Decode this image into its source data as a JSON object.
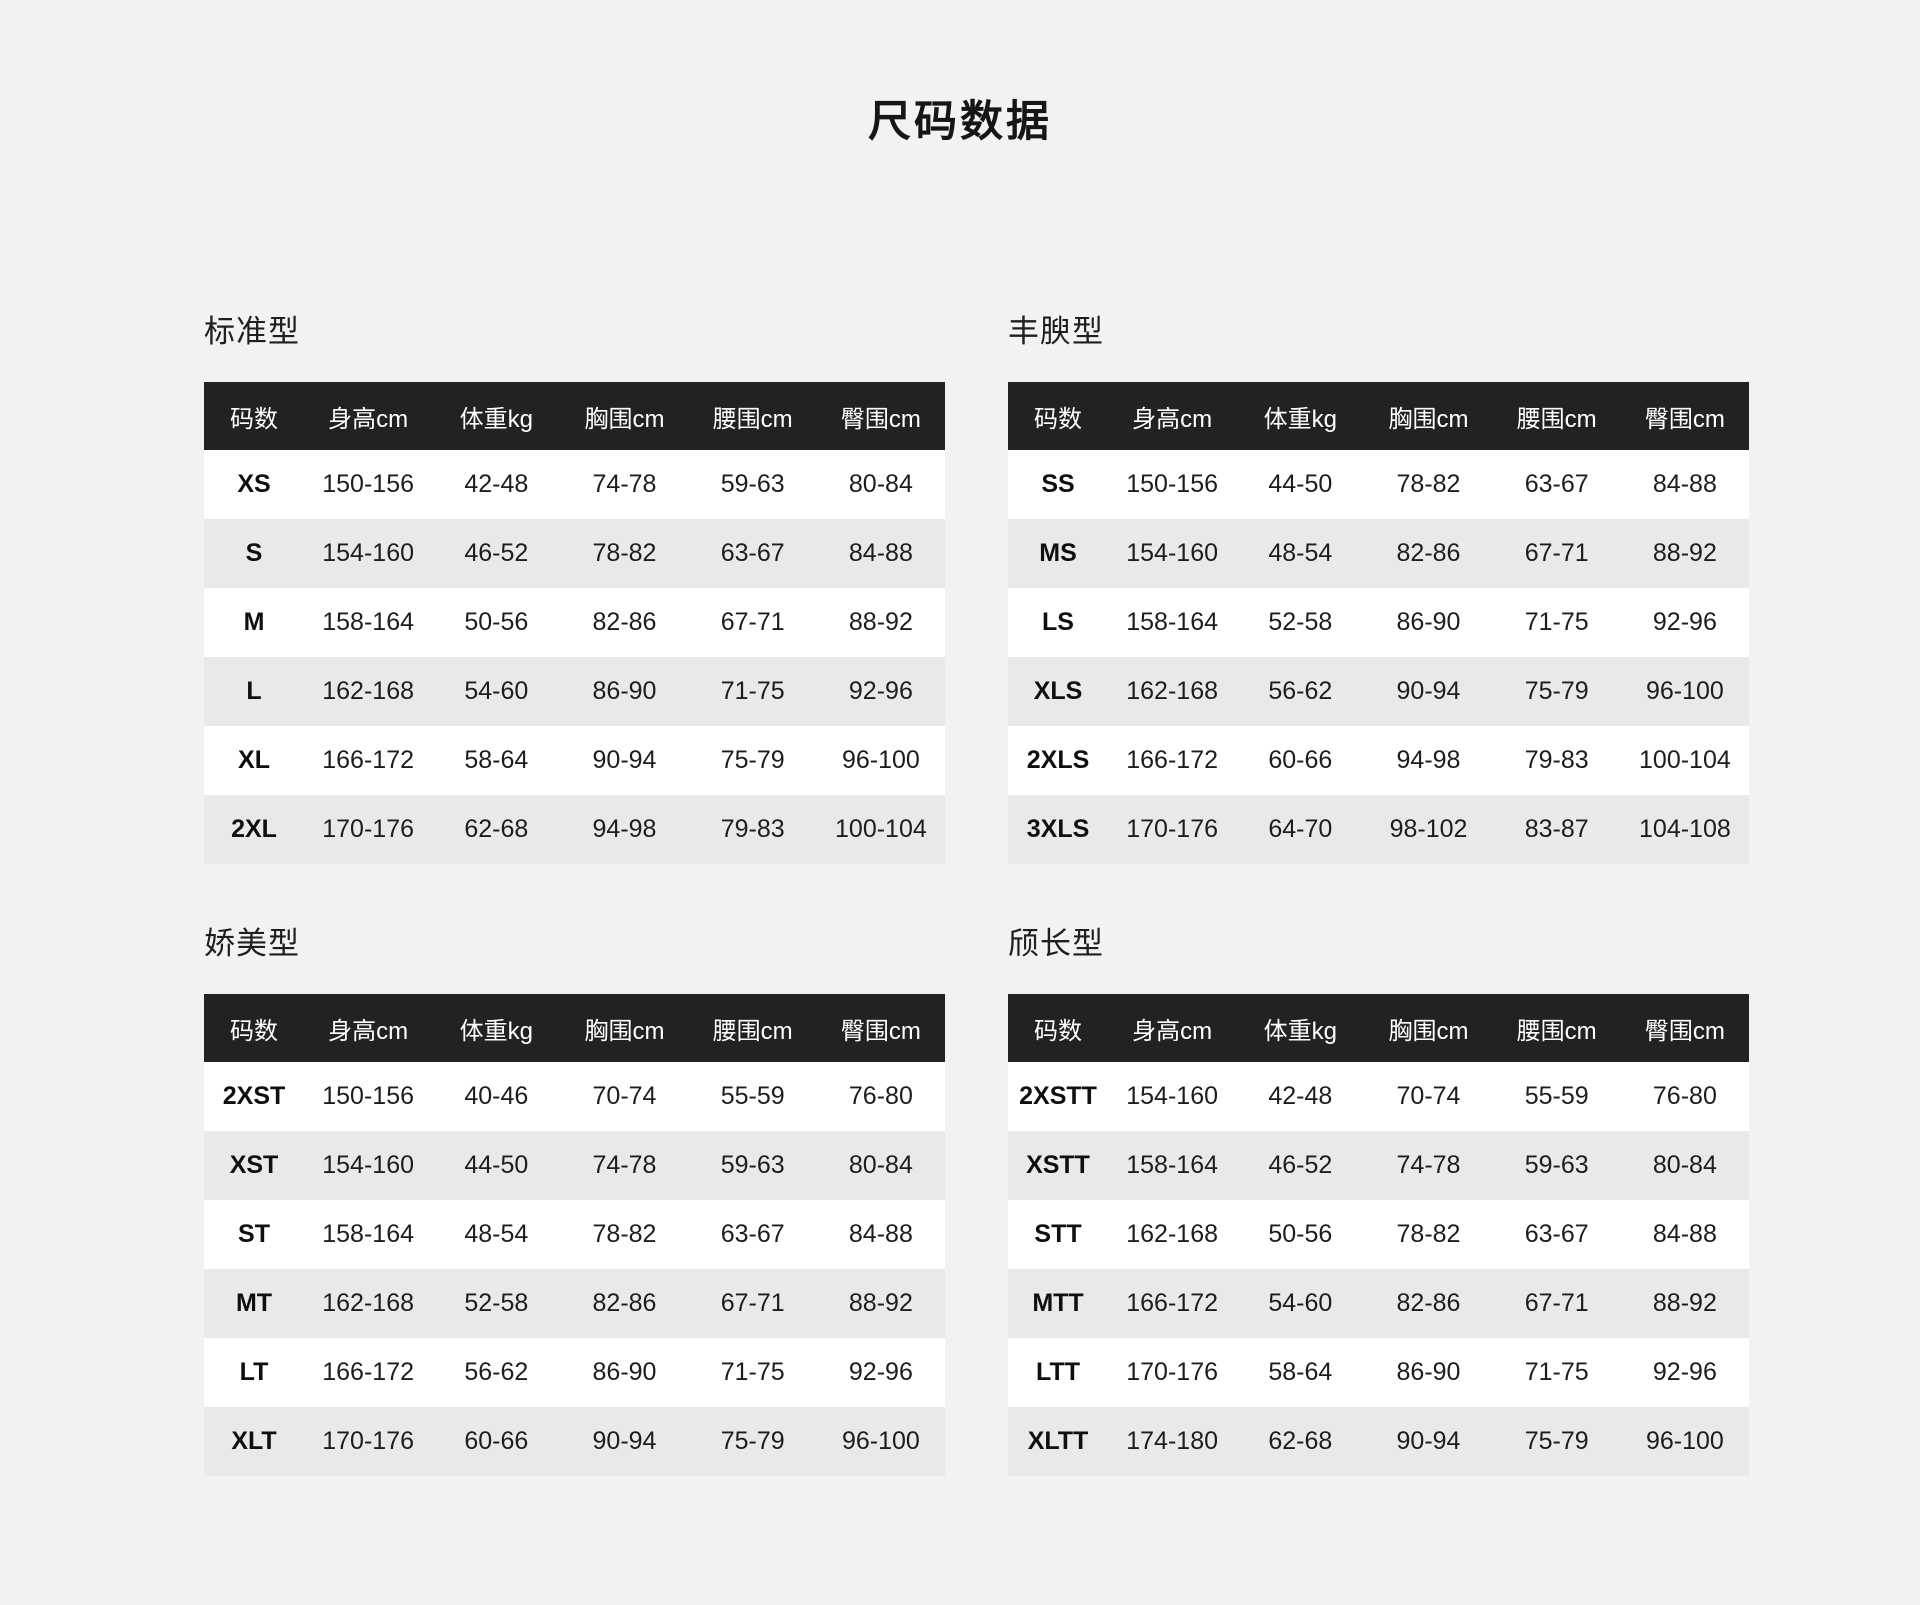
{
  "page": {
    "title": "尺码数据",
    "colors": {
      "page_bg": "#f2f2f0",
      "header_bg": "#222222",
      "header_fg": "#ffffff",
      "row_bg": "#ffffff",
      "row_alt_bg": "#e9e9e9"
    }
  },
  "columns": [
    "码数",
    "身高cm",
    "体重kg",
    "胸围cm",
    "腰围cm",
    "臀围cm"
  ],
  "tables": [
    {
      "label": "标准型",
      "rows": [
        [
          "XS",
          "150-156",
          "42-48",
          "74-78",
          "59-63",
          "80-84"
        ],
        [
          "S",
          "154-160",
          "46-52",
          "78-82",
          "63-67",
          "84-88"
        ],
        [
          "M",
          "158-164",
          "50-56",
          "82-86",
          "67-71",
          "88-92"
        ],
        [
          "L",
          "162-168",
          "54-60",
          "86-90",
          "71-75",
          "92-96"
        ],
        [
          "XL",
          "166-172",
          "58-64",
          "90-94",
          "75-79",
          "96-100"
        ],
        [
          "2XL",
          "170-176",
          "62-68",
          "94-98",
          "79-83",
          "100-104"
        ]
      ]
    },
    {
      "label": "丰腴型",
      "rows": [
        [
          "SS",
          "150-156",
          "44-50",
          "78-82",
          "63-67",
          "84-88"
        ],
        [
          "MS",
          "154-160",
          "48-54",
          "82-86",
          "67-71",
          "88-92"
        ],
        [
          "LS",
          "158-164",
          "52-58",
          "86-90",
          "71-75",
          "92-96"
        ],
        [
          "XLS",
          "162-168",
          "56-62",
          "90-94",
          "75-79",
          "96-100"
        ],
        [
          "2XLS",
          "166-172",
          "60-66",
          "94-98",
          "79-83",
          "100-104"
        ],
        [
          "3XLS",
          "170-176",
          "64-70",
          "98-102",
          "83-87",
          "104-108"
        ]
      ]
    },
    {
      "label": "娇美型",
      "rows": [
        [
          "2XST",
          "150-156",
          "40-46",
          "70-74",
          "55-59",
          "76-80"
        ],
        [
          "XST",
          "154-160",
          "44-50",
          "74-78",
          "59-63",
          "80-84"
        ],
        [
          "ST",
          "158-164",
          "48-54",
          "78-82",
          "63-67",
          "84-88"
        ],
        [
          "MT",
          "162-168",
          "52-58",
          "82-86",
          "67-71",
          "88-92"
        ],
        [
          "LT",
          "166-172",
          "56-62",
          "86-90",
          "71-75",
          "92-96"
        ],
        [
          "XLT",
          "170-176",
          "60-66",
          "90-94",
          "75-79",
          "96-100"
        ]
      ]
    },
    {
      "label": "颀长型",
      "rows": [
        [
          "2XSTT",
          "154-160",
          "42-48",
          "70-74",
          "55-59",
          "76-80"
        ],
        [
          "XSTT",
          "158-164",
          "46-52",
          "74-78",
          "59-63",
          "80-84"
        ],
        [
          "STT",
          "162-168",
          "50-56",
          "78-82",
          "63-67",
          "84-88"
        ],
        [
          "MTT",
          "166-172",
          "54-60",
          "82-86",
          "67-71",
          "88-92"
        ],
        [
          "LTT",
          "170-176",
          "58-64",
          "86-90",
          "71-75",
          "92-96"
        ],
        [
          "XLTT",
          "174-180",
          "62-68",
          "90-94",
          "75-79",
          "96-100"
        ]
      ]
    }
  ]
}
